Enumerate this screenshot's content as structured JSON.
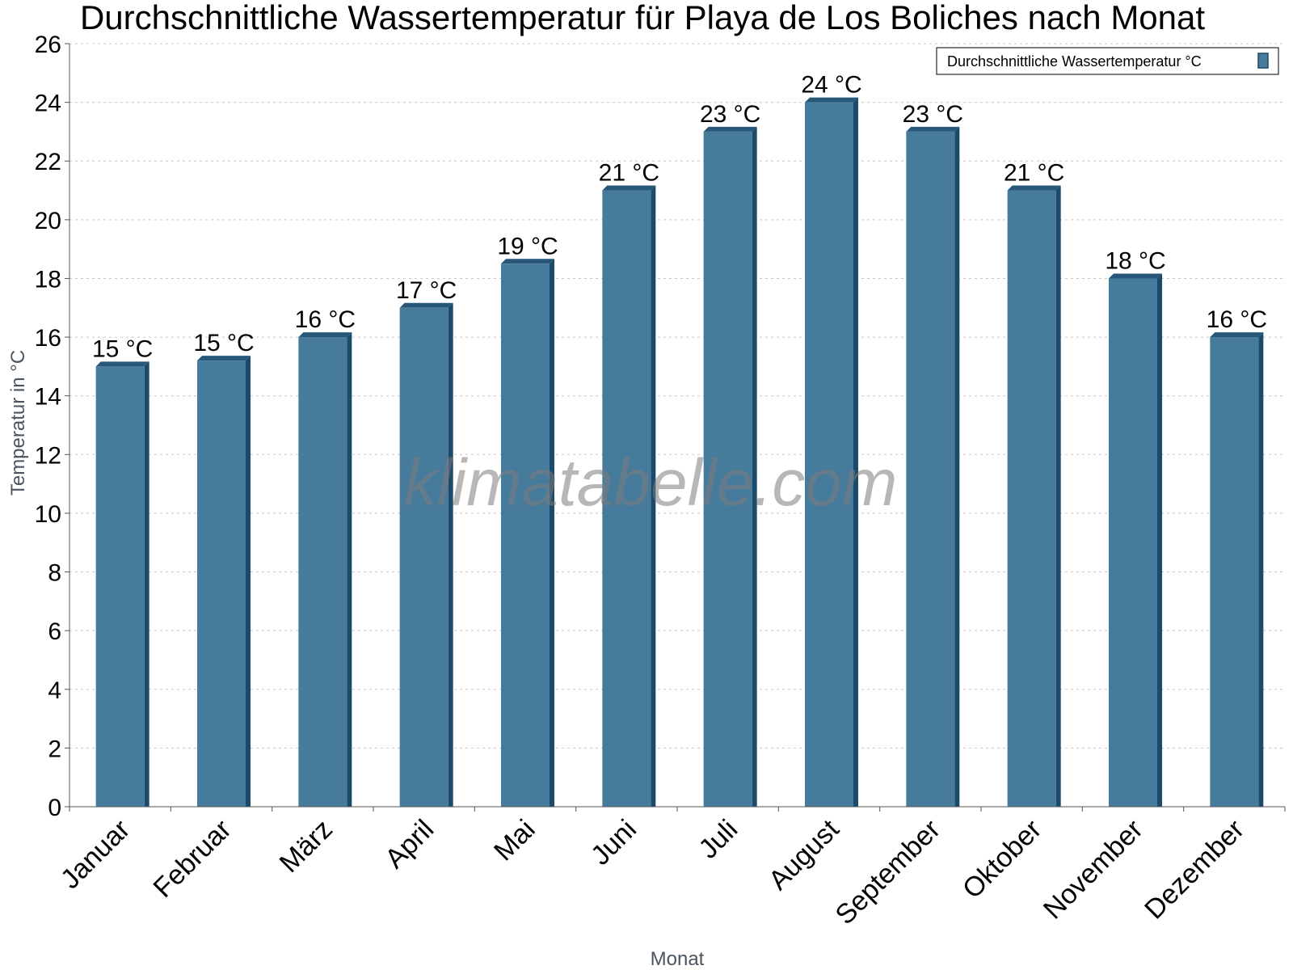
{
  "colors": {
    "bar_face": "#467b9c",
    "bar_side": "#1c4a6a",
    "bar_top": "#27587a",
    "grid": "#c8c8c8",
    "axis": "#555555"
  },
  "watermark": "klimatabelle.com",
  "chart_data": {
    "type": "bar",
    "title": "Durchschnittliche Wassertemperatur für Playa de Los Boliches nach Monat",
    "xlabel": "Monat",
    "ylabel": "Temperatur in °C",
    "ylim": [
      0,
      26
    ],
    "yticks": [
      0,
      2,
      4,
      6,
      8,
      10,
      12,
      14,
      16,
      18,
      20,
      22,
      24,
      26
    ],
    "grid": true,
    "legend_position": "top-right",
    "categories": [
      "Januar",
      "Februar",
      "März",
      "April",
      "Mai",
      "Juni",
      "Juli",
      "August",
      "September",
      "Oktober",
      "November",
      "Dezember"
    ],
    "series": [
      {
        "name": "Durchschnittliche Wassertemperatur °C",
        "values": [
          15.0,
          15.2,
          16.0,
          17.0,
          18.5,
          21.0,
          23.0,
          24.0,
          23.0,
          21.0,
          18.0,
          16.0
        ],
        "labels": [
          "15 °C",
          "15 °C",
          "16 °C",
          "17 °C",
          "19 °C",
          "21 °C",
          "23 °C",
          "24 °C",
          "23 °C",
          "21 °C",
          "18 °C",
          "16 °C"
        ]
      }
    ]
  }
}
